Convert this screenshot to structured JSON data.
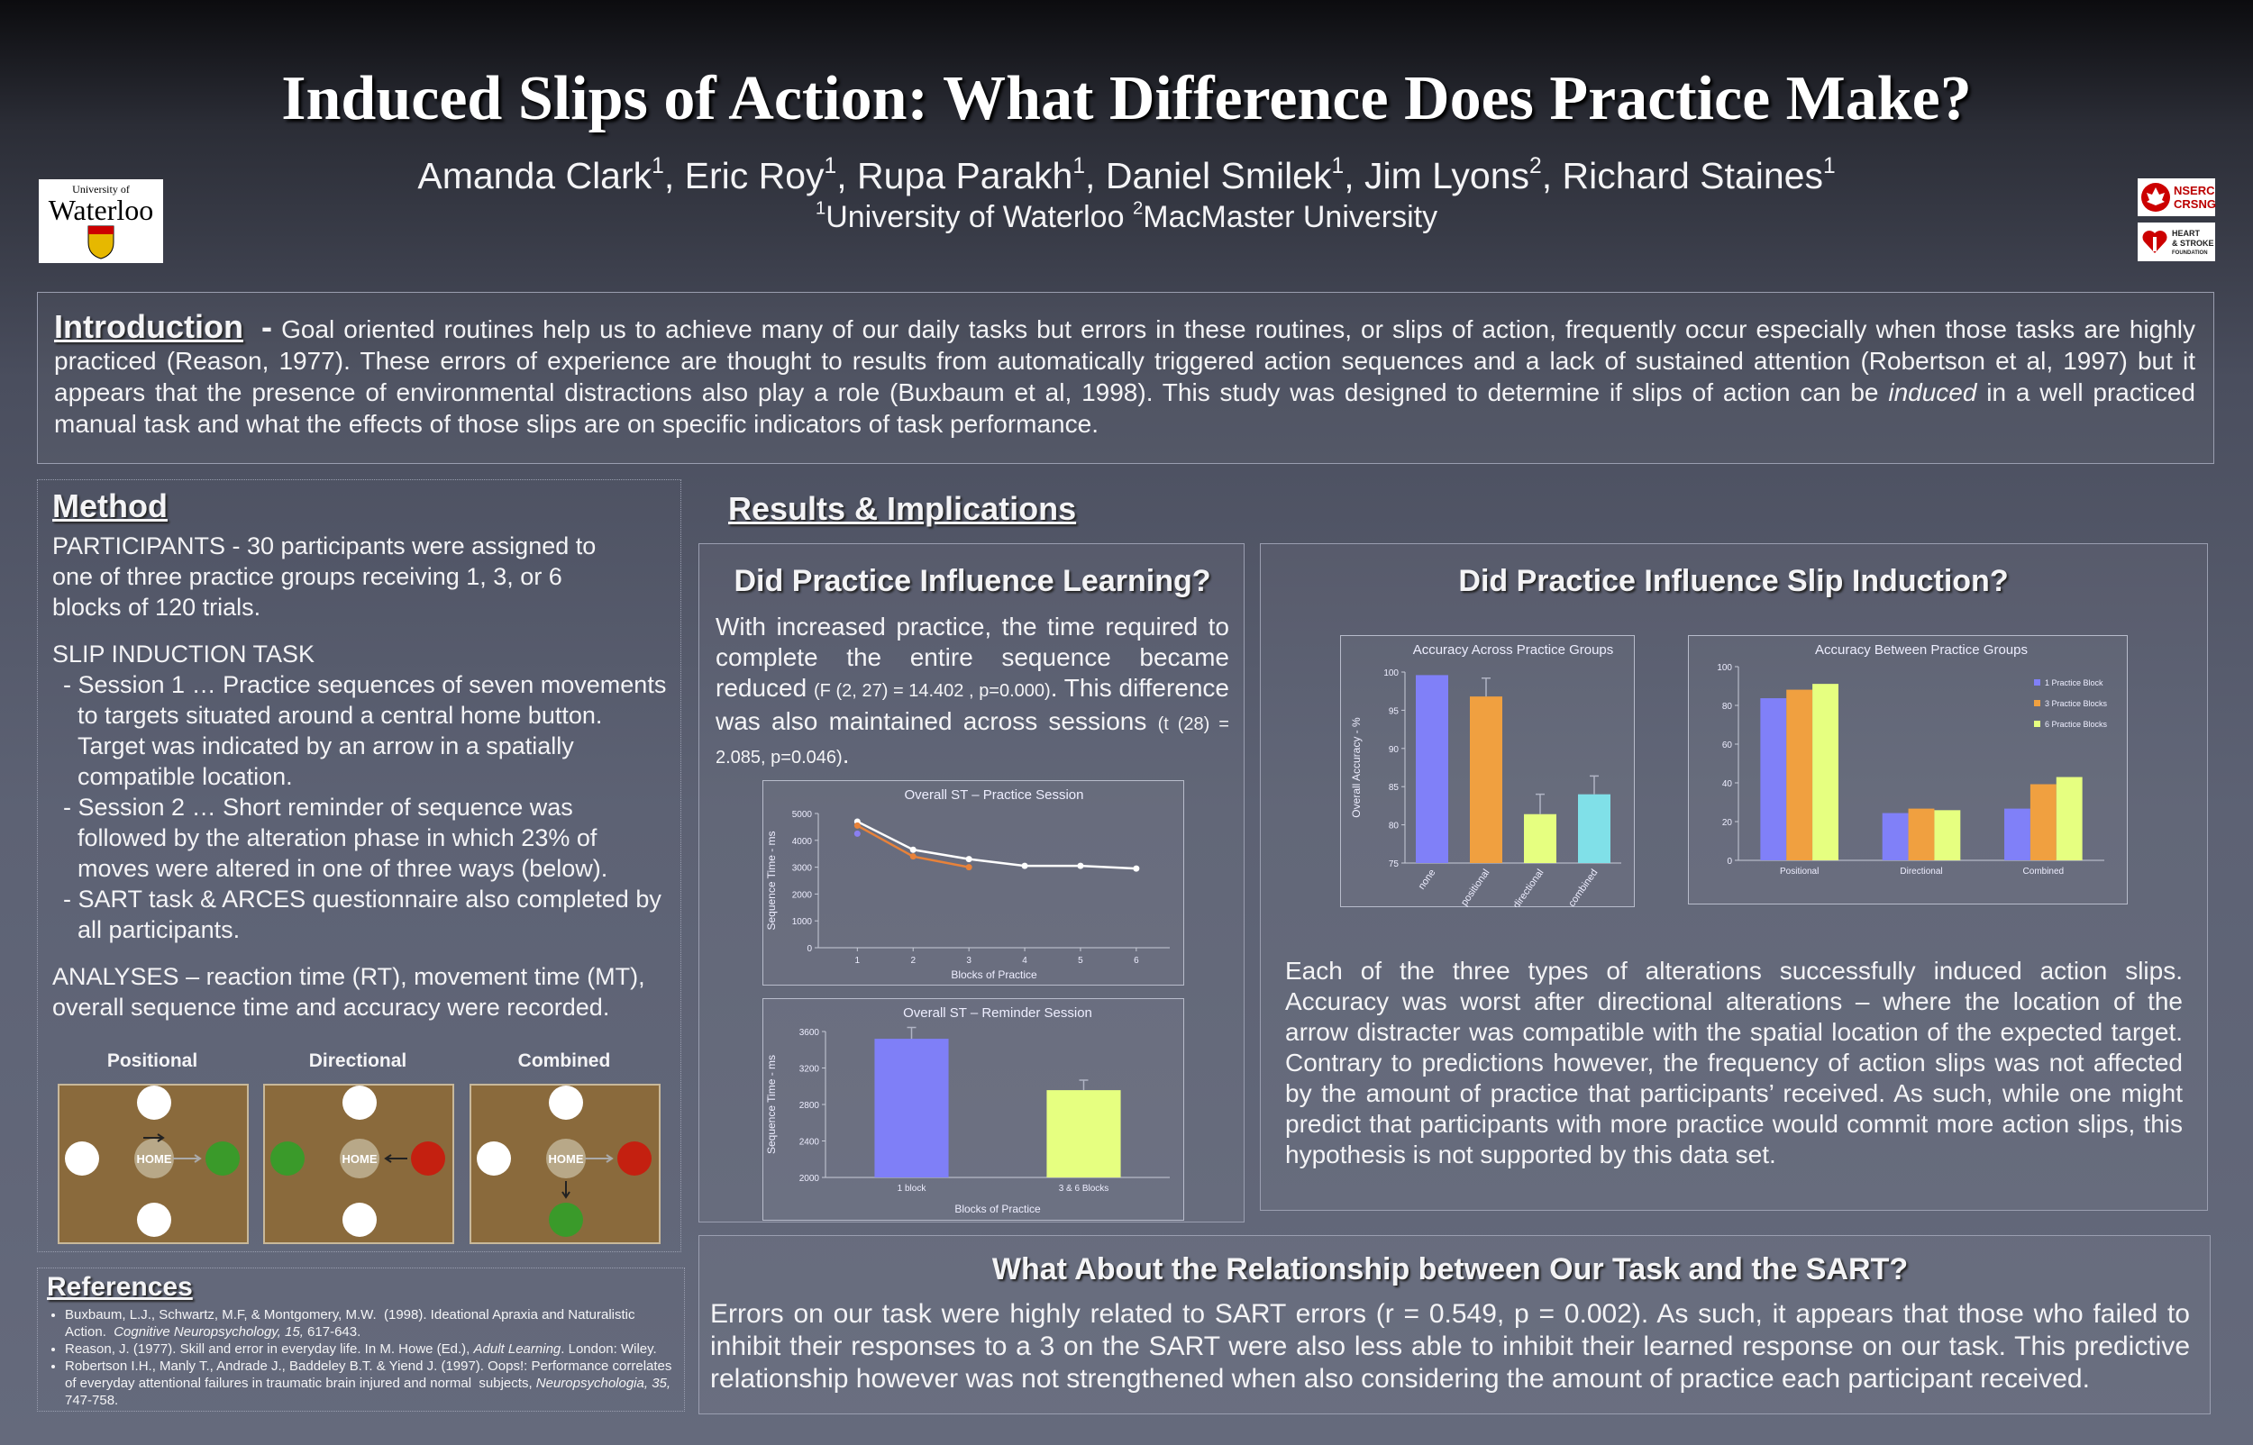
{
  "header": {
    "title": "Induced Slips of Action: What Difference Does Practice Make?",
    "authors": [
      {
        "name": "Amanda Clark",
        "sup": "1",
        "sep": ", "
      },
      {
        "name": "Eric Roy",
        "sup": "1",
        "sep": ", "
      },
      {
        "name": "Rupa Parakh",
        "sup": "1",
        "sep": ", "
      },
      {
        "name": "Daniel Smilek",
        "sup": "1",
        "sep": ", "
      },
      {
        "name": "Jim Lyons",
        "sup": "2",
        "sep": ", "
      },
      {
        "name": "Richard Staines",
        "sup": "1"
      }
    ],
    "affiliations": [
      {
        "sup": "1",
        "name": "University of Waterloo "
      },
      {
        "sup": "2",
        "name": "MacMaster University"
      }
    ]
  },
  "logos": {
    "waterloo_top": "University of",
    "waterloo_name": "Waterloo",
    "nserc": [
      "NSERC",
      "CRSNG"
    ],
    "heart": [
      "HEART",
      "& STROKE",
      "FOUNDATION"
    ]
  },
  "introduction": {
    "heading": "Introduction",
    "dash": "-",
    "text": [
      "Goal oriented routines help us to achieve many of our daily tasks but errors in these routines, or slips of action, frequently occur especially when those tasks are highly practiced (Reason, 1977). These errors of experience are thought to results from automatically triggered action sequences and a lack of sustained attention (Robertson et al, 1997) but it appears that the presence of environmental distractions also play a role (Buxbaum et al, 1998). This study was designed to determine if slips of action can be ",
      "induced",
      " in a well practiced manual task and what the effects of those slips are on specific indicators of task performance."
    ]
  },
  "method": {
    "heading": "Method",
    "participants": "PARTICIPANTS  - 30 participants were assigned to one of three practice groups receiving 1, 3, or 6 blocks of 120 trials.",
    "task_heading": "SLIP INDUCTION TASK",
    "task_items": [
      "- Session 1 … Practice sequences of seven movements to targets situated around a central home button. Target was indicated by an arrow in a spatially compatible location.",
      "- Session 2 … Short reminder of sequence was followed by the alteration phase in which 23% of moves were altered in one of three ways (below).",
      "- SART task & ARCES questionnaire also completed by all participants."
    ],
    "analyses": "ANALYSES – reaction time (RT), movement time (MT), overall sequence time and accuracy were recorded.",
    "diagrams": [
      {
        "label": "Positional",
        "home": "HOME"
      },
      {
        "label": "Directional",
        "home": "HOME"
      },
      {
        "label": "Combined",
        "home": "HOME"
      }
    ]
  },
  "results": {
    "heading": "Results & Implications",
    "learning": {
      "heading": "Did Practice Influence Learning?",
      "text": [
        "With increased practice, the time required to complete the entire sequence became reduced ",
        "(F (2, 27) = 14.402 , p=0.000)",
        ". This difference was also maintained across sessions ",
        "(t (28) = 2.085, p=0.046)",
        "."
      ]
    },
    "slip": {
      "heading": "Did Practice Influence Slip Induction?",
      "text": "Each of the three types of alterations successfully induced action slips. Accuracy was worst after directional alterations – where the location of the arrow distracter was compatible with the  spatial location of the expected target.  Contrary to predictions however, the frequency of action slips was not affected by the amount of practice that participants’ received.  As such, while one might predict that participants with more practice would commit more action slips, this hypothesis is not supported by this data set."
    },
    "sart": {
      "heading": "What About the Relationship between Our Task and the SART?",
      "text": "Errors on our task were highly related to SART errors (r = 0.549, p = 0.002).  As such, it appears that those who failed to inhibit their responses to a 3 on the SART were also less able to inhibit their learned response on our task.  This predictive relationship however was not strengthened when also considering the amount of practice each participant received."
    }
  },
  "references": {
    "heading": "References",
    "items": [
      [
        "Buxbaum, L.J., Schwartz, M.F, & Montgomery, M.W.  (1998). Ideational Apraxia and Naturalistic Action.  ",
        "Cognitive Neuropsychology, 15,",
        " 617-643."
      ],
      [
        "Reason, J. (1977). Skill and error in everyday life. In M. Howe (Ed.), ",
        "Adult Learning",
        ". London: Wiley."
      ],
      [
        "Robertson I.H., Manly T., Andrade J., Baddeley B.T. & Yiend J. (1997). Oops!: Performance correlates of everyday attentional failures in traumatic brain injured and normal  subjects, ",
        "Neuropsychologia, 35,",
        " 747-758."
      ]
    ]
  },
  "chart_data": [
    {
      "type": "line",
      "title": "Overall ST – Practice Session",
      "xlabel": "Blocks of Practice",
      "ylabel": "Sequence Time - ms",
      "x": [
        1,
        2,
        3,
        4,
        5,
        6
      ],
      "xlim": [
        0.3,
        6.6
      ],
      "xticks": [
        1,
        2,
        3,
        4,
        5,
        6
      ],
      "ylim": [
        0,
        5000
      ],
      "yticks": [
        0,
        1000,
        2000,
        3000,
        4000,
        5000
      ],
      "series": [
        {
          "color": "#ffffff",
          "values": [
            4700,
            3650,
            3300,
            3050,
            3050,
            2950
          ]
        },
        {
          "color": "#e8823a",
          "values": [
            4550,
            3400,
            3000,
            null,
            null,
            null
          ]
        },
        {
          "color": "#8a7ff0",
          "values": [
            4250,
            null,
            null,
            null,
            null,
            null
          ]
        }
      ]
    },
    {
      "type": "bar",
      "title": "Overall ST – Reminder Session",
      "xlabel": "Blocks of Practice",
      "ylabel": "Sequence Time - ms",
      "categories": [
        "1 block",
        "3 & 6 Blocks"
      ],
      "values": [
        3520,
        2957
      ],
      "errors": [
        125,
        110
      ],
      "colors": [
        "#7f7ff7",
        "#e6ff80"
      ],
      "ylim": [
        2000,
        3600
      ],
      "yticks": [
        2000,
        2400,
        2800,
        3200,
        3600
      ]
    },
    {
      "type": "bar",
      "title": "Accuracy Across Practice Groups",
      "ylabel": "Overall Accuracy - %",
      "categories": [
        "none",
        "positional",
        "directional",
        "combined"
      ],
      "values": [
        99.6,
        96.8,
        81.4,
        84.0
      ],
      "errors": [
        null,
        2.4,
        2.6,
        2.4
      ],
      "colors": [
        "#8080f8",
        "#f0a040",
        "#e6ff80",
        "#80e0e8"
      ],
      "ylim": [
        75,
        100
      ],
      "yticks": [
        75,
        80,
        85,
        90,
        95,
        100
      ]
    },
    {
      "type": "bar",
      "title": "Accuracy Between Practice Groups",
      "categories": [
        "Positional",
        "Directional",
        "Combined"
      ],
      "legend": "top-right",
      "ylim": [
        0,
        100
      ],
      "yticks": [
        0,
        20,
        40,
        60,
        80,
        100
      ],
      "series": [
        {
          "name": "1 Practice Block",
          "color": "#8080f8",
          "values": [
            83.7,
            24.4,
            26.7
          ]
        },
        {
          "name": "3 Practice Blocks",
          "color": "#f0a040",
          "values": [
            88.1,
            26.7,
            39.3
          ]
        },
        {
          "name": "6 Practice Blocks",
          "color": "#e6ff80",
          "values": [
            91.1,
            25.9,
            43.0
          ]
        }
      ]
    }
  ]
}
